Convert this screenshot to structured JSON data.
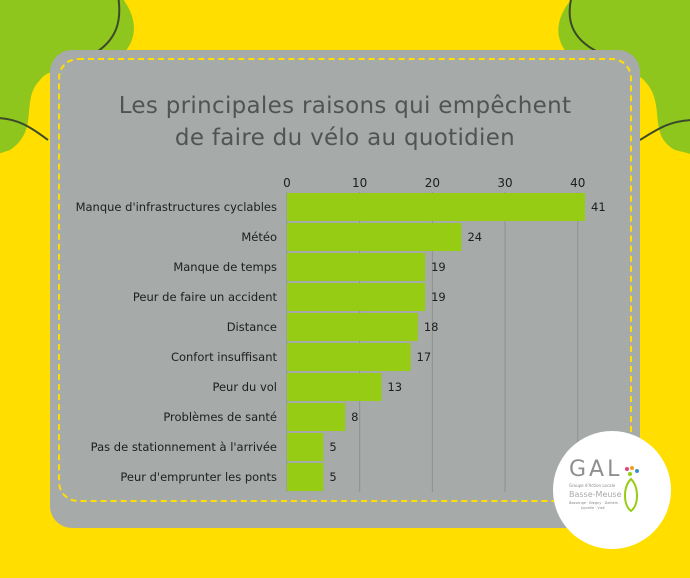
{
  "title_lines": [
    "Les principales raisons qui empêchent",
    "de faire du vélo au quotidien"
  ],
  "logo": {
    "name": "GAL",
    "line1": "Groupe d'Action Locale",
    "line2": "Basse-Meuse",
    "line3": "Bassenge · Blegny · Dalhem",
    "line4": "Juprelle · Visé"
  },
  "colors": {
    "background": "#ffde00",
    "card": "#a6aaa8",
    "bar": "#97cc14",
    "leaf": "#8fc61e",
    "text": "#1e1e1e",
    "title": "#505453"
  },
  "chart_data": {
    "type": "bar",
    "orientation": "horizontal",
    "categories": [
      "Manque d'infrastructures cyclables",
      "Météo",
      "Manque de temps",
      "Peur de faire un accident",
      "Distance",
      "Confort insuffisant",
      "Peur du vol",
      "Problèmes de santé",
      "Pas de stationnement à l'arrivée",
      "Peur d'emprunter les ponts"
    ],
    "values": [
      41,
      24,
      19,
      19,
      18,
      17,
      13,
      8,
      5,
      5
    ],
    "xlim": [
      0,
      41
    ],
    "xticks": [
      0,
      10,
      20,
      30,
      40
    ],
    "axis_position": "top",
    "grid": true
  }
}
